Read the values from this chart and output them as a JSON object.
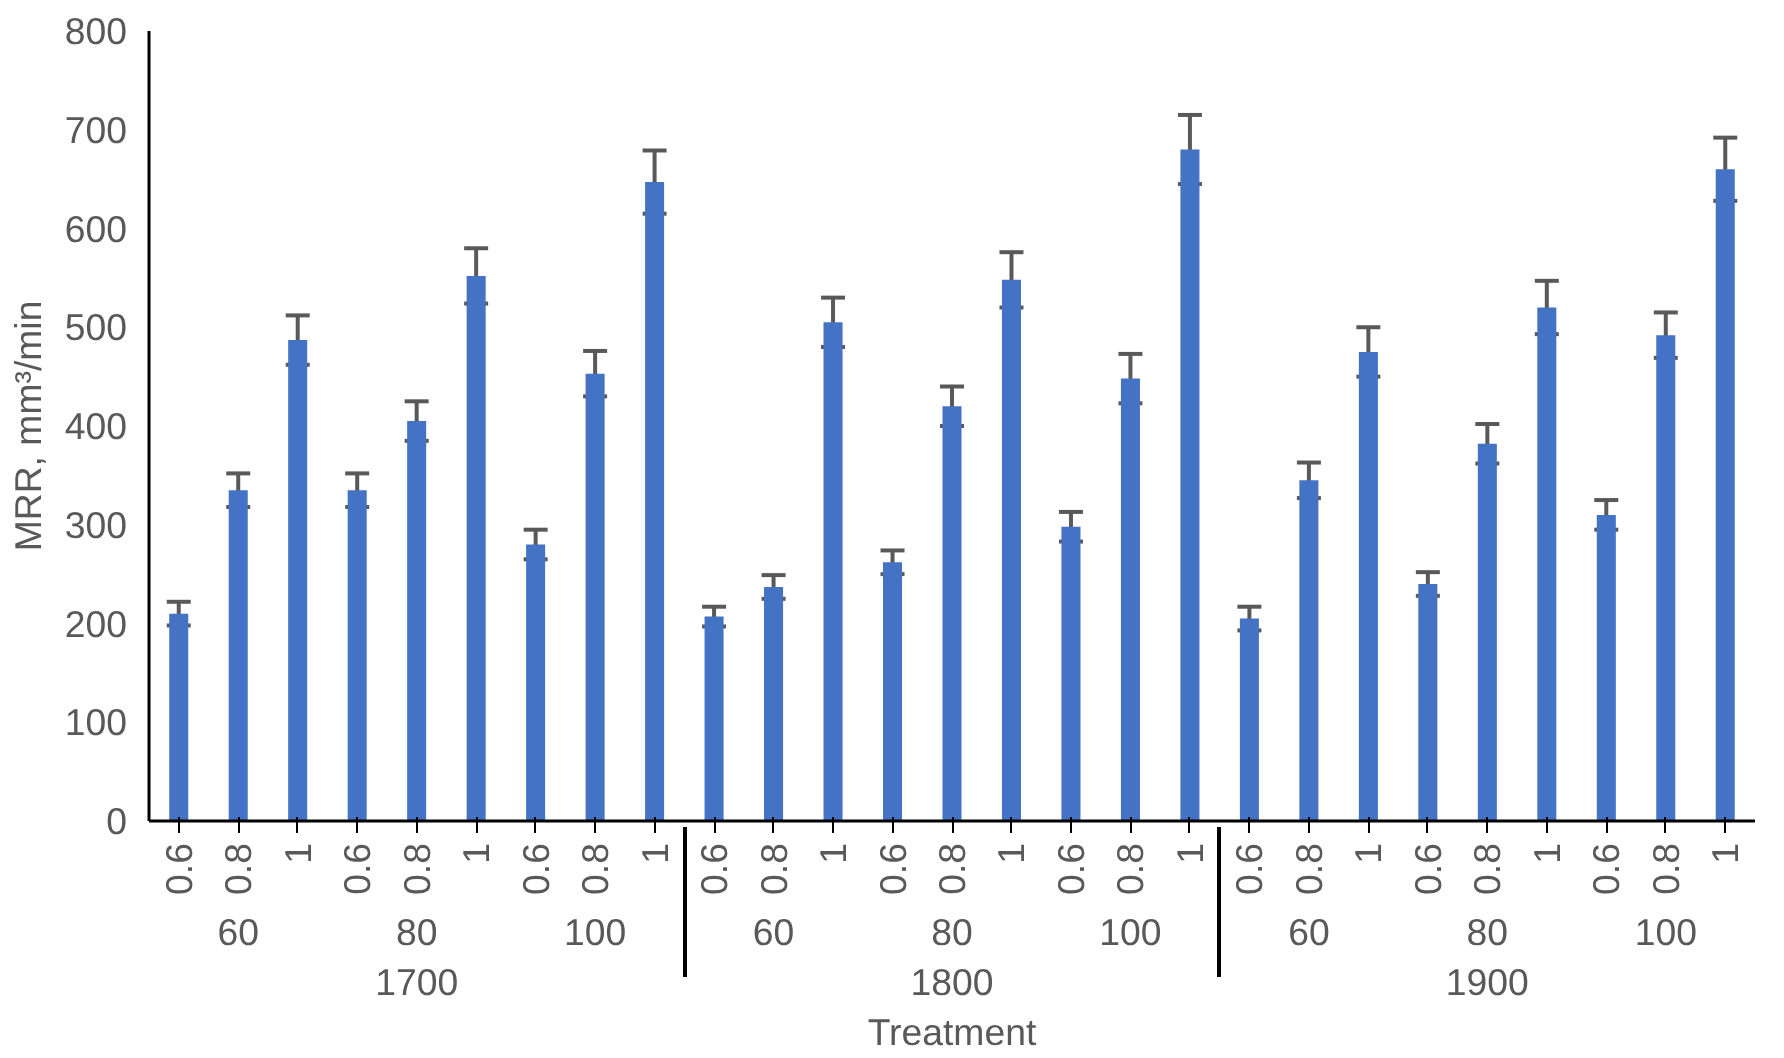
{
  "chart_data": {
    "type": "bar",
    "xlabel": "Treatment",
    "ylabel": "MRR, mm³/min",
    "categories": [
      "0.6",
      "0.8",
      "1",
      "0.6",
      "0.8",
      "1",
      "0.6",
      "0.8",
      "1",
      "0.6",
      "0.8",
      "1",
      "0.6",
      "0.8",
      "1",
      "0.6",
      "0.8",
      "1",
      "0.6",
      "0.8",
      "1",
      "0.6",
      "0.8",
      "1",
      "0.6",
      "0.8",
      "1"
    ],
    "annotations": [
      "60",
      "80",
      "100",
      "60",
      "80",
      "100",
      "60",
      "80",
      "100",
      "1700",
      "1800",
      "1900"
    ],
    "values": [
      210,
      335,
      487,
      335,
      405,
      552,
      280,
      453,
      647,
      207,
      237,
      505,
      262,
      420,
      548,
      298,
      448,
      680,
      205,
      345,
      475,
      240,
      382,
      520,
      310,
      492,
      660
    ],
    "errors": [
      12,
      17,
      25,
      17,
      20,
      28,
      15,
      23,
      32,
      10,
      12,
      25,
      12,
      20,
      28,
      15,
      25,
      35,
      12,
      18,
      25,
      12,
      20,
      27,
      15,
      23,
      32
    ],
    "color": "#4472c4",
    "ylim": [
      0,
      800
    ],
    "yticks": [
      0,
      100,
      200,
      300,
      400,
      500,
      600,
      700,
      800
    ],
    "grid": false
  }
}
